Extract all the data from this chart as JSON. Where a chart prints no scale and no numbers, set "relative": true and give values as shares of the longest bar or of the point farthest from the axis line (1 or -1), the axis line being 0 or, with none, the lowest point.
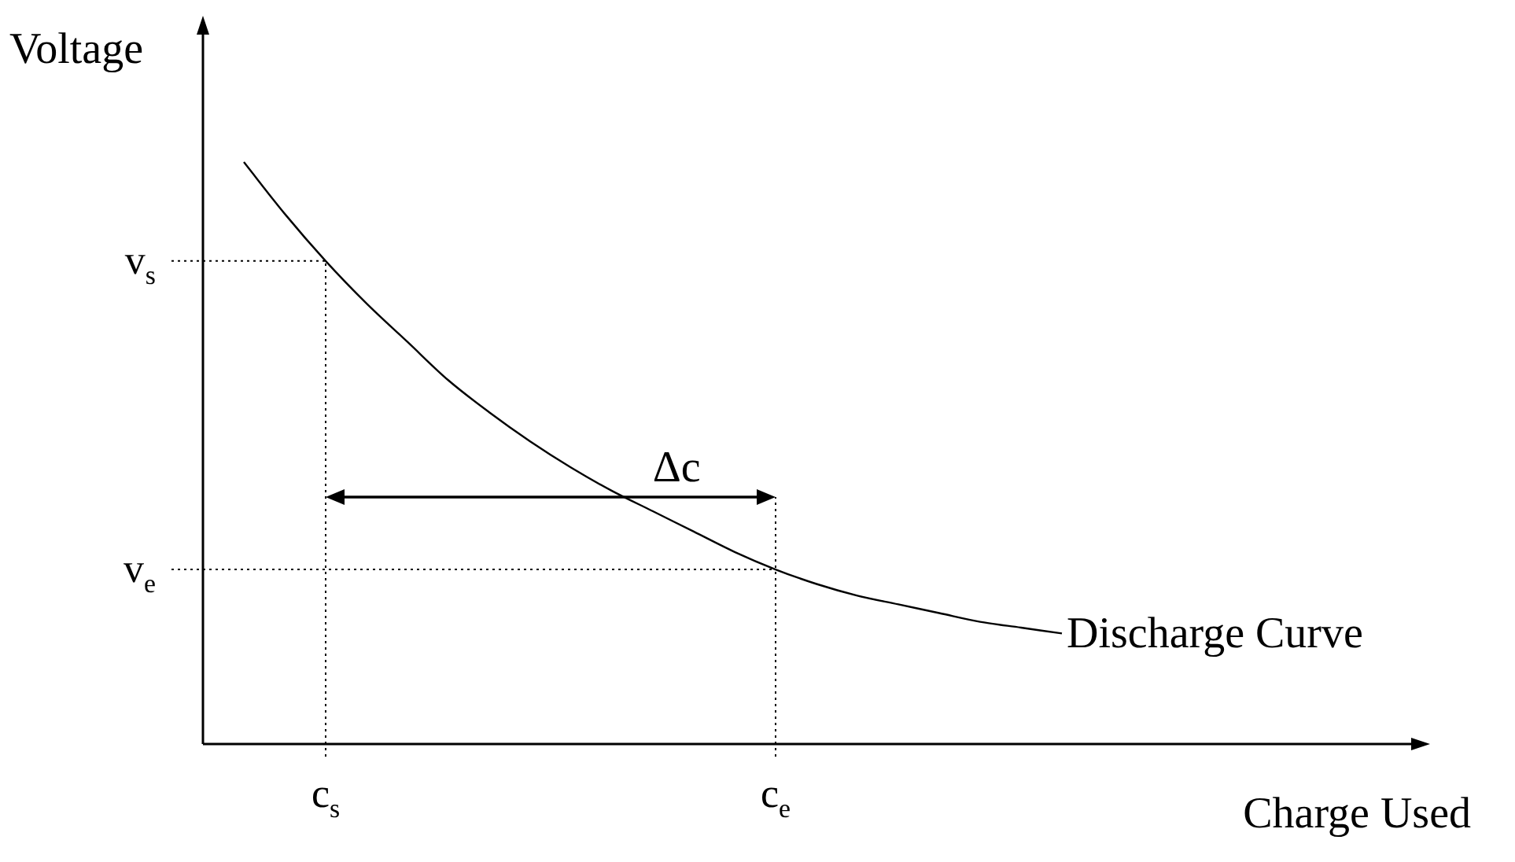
{
  "chart_data": {
    "type": "line",
    "relative": true,
    "legend": false,
    "xlabel": "Charge Used",
    "ylabel": "Voltage",
    "categories": [
      null,
      null,
      null,
      "c$_{s}$",
      null,
      null,
      null,
      null,
      null,
      null,
      null,
      null,
      null,
      null,
      "c$_{e}$",
      null,
      null,
      null,
      null,
      null,
      null,
      null,
      null,
      null,
      null,
      null,
      null,
      null,
      null,
      null
    ],
    "series": [
      {
        "name": "Discharge Curve",
        "color": "#000000",
        "values": [
          null,
          1,
          0.911,
          0.83,
          0.757,
          0.691,
          0.625,
          0.57,
          0.52,
          0.475,
          0.435,
          0.4,
          0.365,
          0.33,
          0.3,
          0.275,
          0.255,
          0.24,
          0.225,
          0.21,
          0.2,
          0.19,
          null,
          null,
          null,
          null,
          null,
          null,
          null,
          null
        ]
      }
    ],
    "ref_lines": [
      {
        "axis": "y",
        "value": 0.83,
        "label": "v$_{s}$",
        "line_style": "dotted"
      },
      {
        "axis": "y",
        "value": 0.3,
        "label": "v$_{e}$",
        "line_style": "dotted"
      },
      {
        "axis": "x",
        "value": "c$_{s}$",
        "line_style": "dotted"
      },
      {
        "axis": "x",
        "value": "c$_{e}$",
        "line_style": "dotted"
      }
    ],
    "annotations": [
      "Δc"
    ]
  }
}
